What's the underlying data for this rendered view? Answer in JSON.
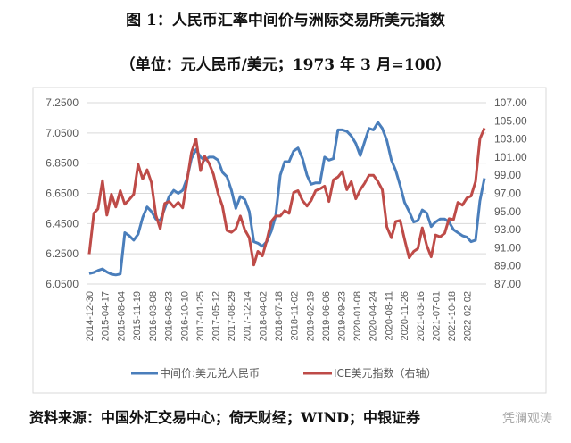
{
  "title": "图 1：人民币汇率中间价与洲际交易所美元指数",
  "subtitle": "（单位：元人民币/美元；1973 年 3 月=100）",
  "footer": "资料来源：中国外汇交易中心；倚天财经；WIND；中银证券",
  "watermark": "凭澜观涛",
  "chart_data": {
    "type": "line",
    "left_axis": {
      "ylim": [
        6.05,
        7.25
      ],
      "ticks": [
        "6.0500",
        "6.2500",
        "6.4500",
        "6.6500",
        "6.8500",
        "7.0500",
        "7.2500"
      ]
    },
    "right_axis": {
      "ylim": [
        87,
        107
      ],
      "ticks": [
        "87.00",
        "89.00",
        "91.00",
        "93.00",
        "95.00",
        "97.00",
        "99.00",
        "101.00",
        "103.00",
        "105.00",
        "107.00"
      ]
    },
    "x_ticks": [
      "2014-12-30",
      "2015-04-17",
      "2015-08-04",
      "2015-11-19",
      "2016-03-08",
      "2016-06-23",
      "2016-10-10",
      "2017-01-25",
      "2017-05-12",
      "2017-08-29",
      "2017-12-14",
      "2018-04-02",
      "2018-07-18",
      "2018-11-02",
      "2019-02-19",
      "2019-06-06",
      "2019-09-23",
      "2020-01-08",
      "2020-04-24",
      "2020-08-11",
      "2020-11-26",
      "2021-03-16",
      "2021-07-01",
      "2021-10-18",
      "2022-02-02"
    ],
    "grid": true,
    "legend_position": "bottom",
    "colors": {
      "cny": "#4a7ebb",
      "dxy": "#be4b48"
    },
    "dates": [
      "2014-12-30",
      "2015-01-31",
      "2015-02-28",
      "2015-03-31",
      "2015-04-30",
      "2015-05-31",
      "2015-06-30",
      "2015-07-31",
      "2015-08-31",
      "2015-09-30",
      "2015-10-31",
      "2015-11-30",
      "2015-12-31",
      "2016-01-31",
      "2016-02-29",
      "2016-03-31",
      "2016-04-30",
      "2016-05-31",
      "2016-06-30",
      "2016-07-31",
      "2016-08-31",
      "2016-09-30",
      "2016-10-31",
      "2016-11-30",
      "2016-12-31",
      "2017-01-31",
      "2017-02-28",
      "2017-03-31",
      "2017-04-30",
      "2017-05-31",
      "2017-06-30",
      "2017-07-31",
      "2017-08-31",
      "2017-09-30",
      "2017-10-31",
      "2017-11-30",
      "2017-12-31",
      "2018-01-31",
      "2018-02-28",
      "2018-03-31",
      "2018-04-30",
      "2018-05-31",
      "2018-06-30",
      "2018-07-31",
      "2018-08-31",
      "2018-09-30",
      "2018-10-31",
      "2018-11-30",
      "2018-12-31",
      "2019-01-31",
      "2019-02-28",
      "2019-03-31",
      "2019-04-30",
      "2019-05-31",
      "2019-06-30",
      "2019-07-31",
      "2019-08-31",
      "2019-09-30",
      "2019-10-31",
      "2019-11-30",
      "2019-12-31",
      "2020-01-31",
      "2020-02-29",
      "2020-03-31",
      "2020-04-30",
      "2020-05-31",
      "2020-06-30",
      "2020-07-31",
      "2020-08-31",
      "2020-09-30",
      "2020-10-31",
      "2020-11-30",
      "2020-12-31",
      "2021-01-31",
      "2021-02-28",
      "2021-03-31",
      "2021-04-30",
      "2021-05-31",
      "2021-06-30",
      "2021-07-31",
      "2021-08-31",
      "2021-09-30",
      "2021-10-31",
      "2021-11-30",
      "2021-12-31",
      "2022-01-31",
      "2022-02-28",
      "2022-03-31",
      "2022-04-30",
      "2022-05-31"
    ],
    "series": [
      {
        "name": "中间价:美元兑人民币",
        "axis": "left",
        "values": [
          6.119,
          6.127,
          6.14,
          6.15,
          6.13,
          6.115,
          6.11,
          6.116,
          6.39,
          6.37,
          6.34,
          6.38,
          6.49,
          6.56,
          6.53,
          6.48,
          6.47,
          6.55,
          6.63,
          6.67,
          6.65,
          6.67,
          6.75,
          6.88,
          6.94,
          6.89,
          6.87,
          6.89,
          6.89,
          6.87,
          6.79,
          6.76,
          6.67,
          6.55,
          6.63,
          6.61,
          6.53,
          6.33,
          6.32,
          6.3,
          6.33,
          6.4,
          6.5,
          6.77,
          6.86,
          6.86,
          6.93,
          6.95,
          6.88,
          6.77,
          6.71,
          6.72,
          6.72,
          6.89,
          6.87,
          6.88,
          7.07,
          7.07,
          7.06,
          7.03,
          6.98,
          6.9,
          6.99,
          7.08,
          7.07,
          7.12,
          7.08,
          7.0,
          6.87,
          6.8,
          6.7,
          6.59,
          6.53,
          6.46,
          6.47,
          6.54,
          6.52,
          6.43,
          6.46,
          6.48,
          6.48,
          6.46,
          6.41,
          6.39,
          6.37,
          6.36,
          6.33,
          6.34,
          6.6,
          6.75
        ]
      },
      {
        "name": "ICE美元指数（右轴）",
        "axis": "right",
        "values": [
          90.3,
          94.8,
          95.3,
          98.4,
          94.6,
          96.9,
          95.5,
          97.3,
          95.8,
          96.3,
          96.9,
          100.2,
          98.6,
          99.6,
          98.2,
          94.6,
          93.1,
          95.9,
          96.1,
          95.5,
          96.0,
          95.4,
          98.4,
          101.5,
          103.0,
          99.5,
          101.1,
          100.3,
          99.1,
          97.0,
          95.6,
          92.9,
          92.7,
          93.1,
          94.5,
          93.0,
          92.1,
          89.1,
          90.6,
          90.1,
          91.8,
          93.9,
          94.5,
          94.5,
          95.1,
          94.8,
          97.1,
          97.3,
          96.2,
          95.6,
          96.2,
          97.3,
          97.5,
          97.8,
          96.1,
          98.5,
          98.8,
          99.4,
          97.4,
          98.3,
          96.4,
          97.4,
          98.1,
          99.0,
          99.0,
          98.3,
          97.4,
          93.3,
          92.1,
          93.9,
          94.0,
          91.9,
          89.9,
          90.6,
          90.9,
          93.2,
          91.3,
          90.0,
          92.4,
          92.2,
          92.6,
          94.2,
          94.1,
          96.0,
          95.7,
          96.5,
          96.7,
          98.3,
          103.0,
          104.2
        ]
      }
    ]
  }
}
